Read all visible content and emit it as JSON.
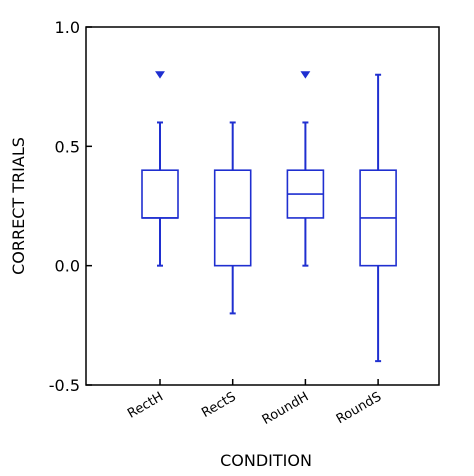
{
  "chart_data": {
    "type": "box",
    "title": "",
    "xlabel": "CONDITION",
    "ylabel": "CORRECT TRIALS",
    "ylim": [
      -0.5,
      1.0
    ],
    "yticks": [
      "-0.5",
      "0.0",
      "0.5",
      "1.0"
    ],
    "categories": [
      "RectH",
      "RectS",
      "RoundH",
      "RoundS"
    ],
    "boxes": [
      {
        "category": "RectH",
        "whisker_low": 0.0,
        "q1": 0.2,
        "median": 0.2,
        "q3": 0.4,
        "whisker_high": 0.6,
        "outliers": [
          0.8
        ]
      },
      {
        "category": "RectS",
        "whisker_low": -0.2,
        "q1": 0.0,
        "median": 0.2,
        "q3": 0.4,
        "whisker_high": 0.6,
        "outliers": []
      },
      {
        "category": "RoundH",
        "whisker_low": 0.0,
        "q1": 0.2,
        "median": 0.3,
        "q3": 0.4,
        "whisker_high": 0.6,
        "outliers": [
          0.8
        ]
      },
      {
        "category": "RoundS",
        "whisker_low": -0.4,
        "q1": 0.0,
        "median": 0.2,
        "q3": 0.4,
        "whisker_high": 0.8,
        "outliers": []
      }
    ],
    "colors": {
      "box": "#1f2fd0",
      "axis": "#000000"
    },
    "grid": false,
    "legend": "none"
  }
}
